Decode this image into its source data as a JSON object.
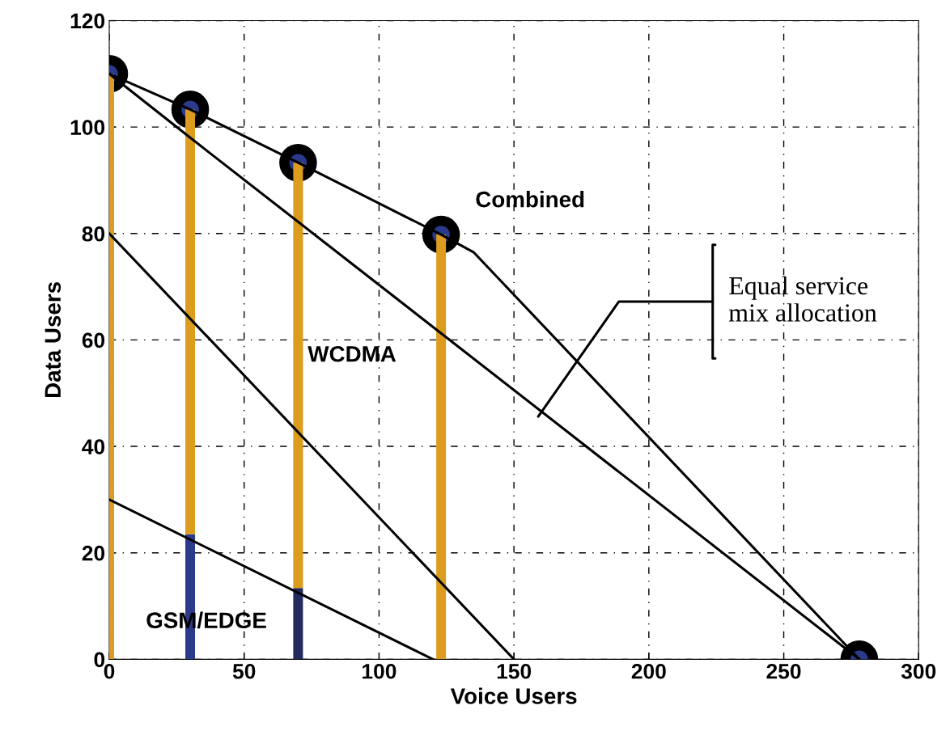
{
  "chart_data": {
    "type": "line",
    "xlabel": "Voice Users",
    "ylabel": "Data Users",
    "xlim": [
      0,
      300
    ],
    "ylim": [
      0,
      120
    ],
    "xticks": [
      0,
      50,
      100,
      150,
      200,
      250,
      300
    ],
    "yticks": [
      0,
      20,
      40,
      60,
      80,
      100,
      120
    ],
    "grid": true,
    "stacked": true,
    "marker": "none",
    "series": [
      {
        "color": "#000000",
        "x": [
          0,
          30,
          70,
          123,
          135,
          278
        ],
        "values": [
          110,
          103.3,
          93.3,
          79.8,
          76.5,
          0
        ]
      },
      {
        "color": "#000000",
        "x": [
          0,
          30,
          278
        ],
        "values": [
          110,
          98,
          0
        ]
      },
      {
        "color": "#000000",
        "x": [
          0,
          150
        ],
        "values": [
          80,
          0
        ]
      },
      {
        "color": "#000000",
        "x": [
          0,
          120
        ],
        "values": [
          30,
          0
        ]
      },
      {
        "type": "bar",
        "colors": [
          "#2b3a8a",
          "#2b3a8a",
          "#222a5e",
          "#2b3a8a"
        ],
        "x": [
          0,
          30,
          70,
          123
        ],
        "values": [
          0,
          23.5,
          13.4,
          0
        ]
      },
      {
        "type": "bar",
        "color": "#dc9c1e",
        "x": [
          0,
          30,
          70,
          123
        ],
        "values": [
          110,
          79.8,
          79.9,
          79.8
        ]
      },
      {
        "type": "scatter",
        "color": "#2b3a8a",
        "marker": "circle",
        "x": [
          0,
          30,
          70,
          123,
          278
        ],
        "values": [
          110,
          103.3,
          93.3,
          79.8,
          0
        ]
      }
    ],
    "annotations": [
      "Combined",
      "WCDMA",
      "GSM/EDGE",
      "Equal service\nmix allocation"
    ]
  }
}
